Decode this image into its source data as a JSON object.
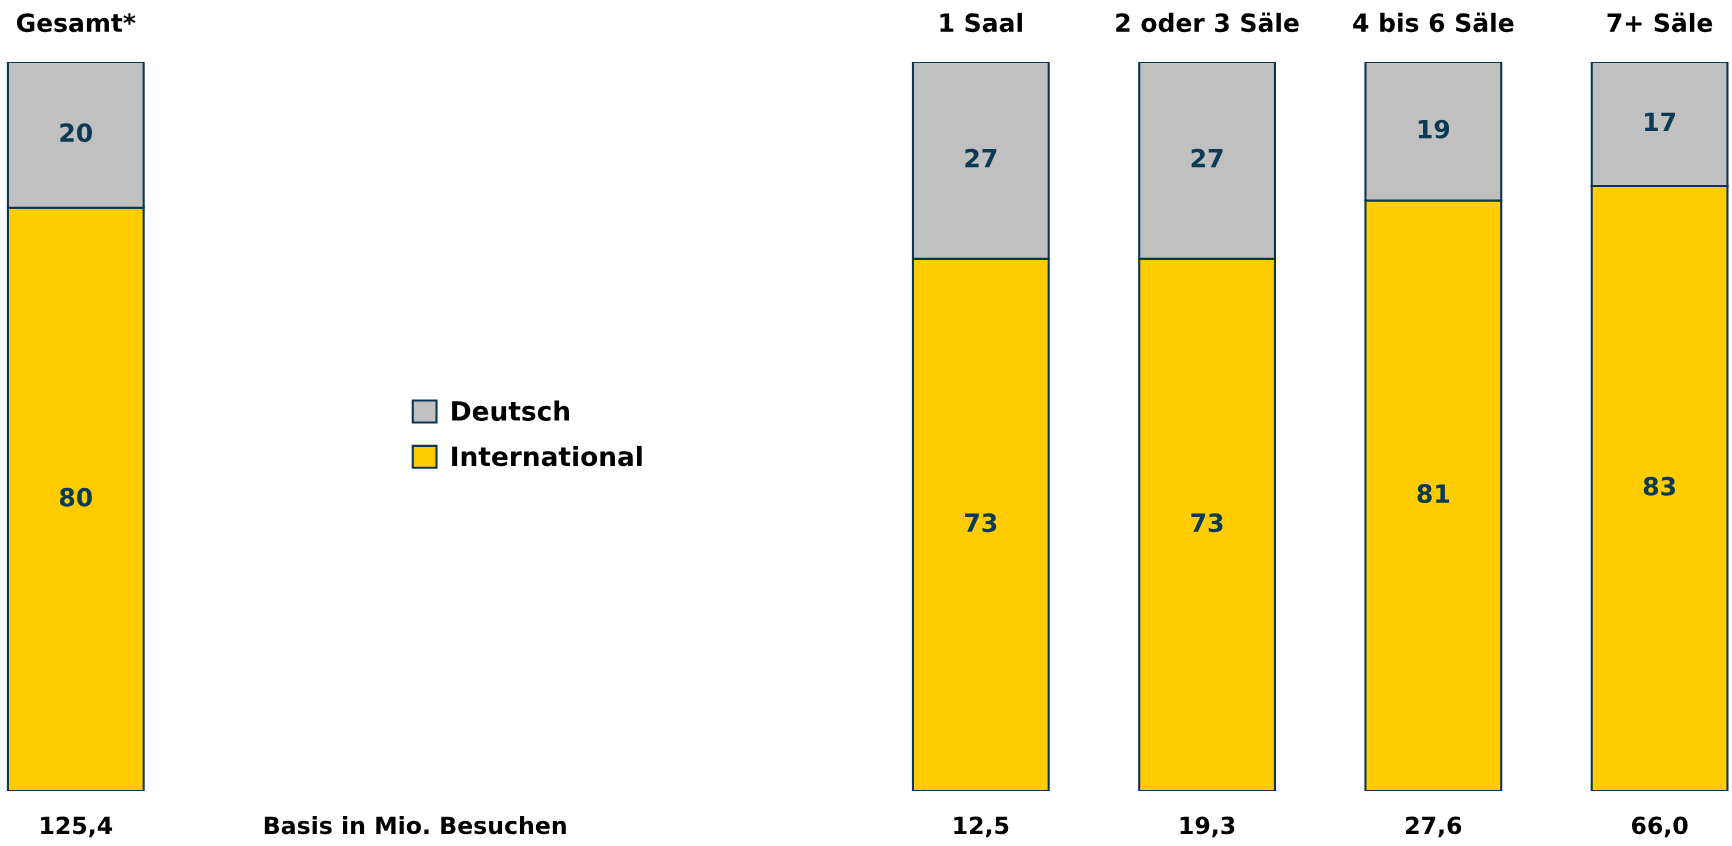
{
  "chart_data": {
    "type": "bar",
    "stacked": true,
    "categories": [
      "Gesamt*",
      null,
      null,
      null,
      "1 Saal",
      "2 oder 3 Säle",
      "4 bis 6 Säle",
      "7+ Säle"
    ],
    "series": [
      {
        "name": "International",
        "color": "#ffcc00",
        "values": [
          80,
          null,
          null,
          null,
          73,
          73,
          81,
          83
        ]
      },
      {
        "name": "Deutsch",
        "color": "#c0c0c0",
        "values": [
          20,
          null,
          null,
          null,
          27,
          27,
          19,
          17
        ]
      }
    ],
    "data_labels": true,
    "legend": "center left",
    "tick_labels": "x",
    "annotations": [
      "125,4",
      "Basis in Mio. Besuchen",
      "12,5",
      "19,3",
      "27,6",
      "66,0"
    ]
  }
}
